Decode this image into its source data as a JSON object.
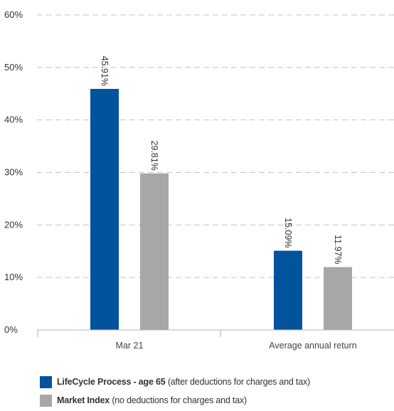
{
  "chart_data": {
    "type": "bar",
    "categories": [
      "Mar 21",
      "Average annual return"
    ],
    "series": [
      {
        "name": "LifeCycle Process - age 65",
        "name_suffix": "(after deductions for charges and tax)",
        "color": "#02539c",
        "values": [
          45.91,
          15.09
        ],
        "labels": [
          "45.91%",
          "15.09%"
        ]
      },
      {
        "name": "Market Index",
        "name_suffix": "(no deductions for charges and tax)",
        "color": "#a7a7a7",
        "values": [
          29.81,
          11.97
        ],
        "labels": [
          "29.81%",
          "11.97%"
        ]
      }
    ],
    "ylim": [
      0,
      60
    ],
    "yticks": [
      0,
      10,
      20,
      30,
      40,
      50,
      60
    ],
    "ytick_labels": [
      "0%",
      "10%",
      "20%",
      "30%",
      "40%",
      "50%",
      "60%"
    ],
    "grid": true,
    "grid_style": "dashed",
    "legend_position": "bottom-left",
    "title": "",
    "xlabel": "",
    "ylabel": ""
  }
}
